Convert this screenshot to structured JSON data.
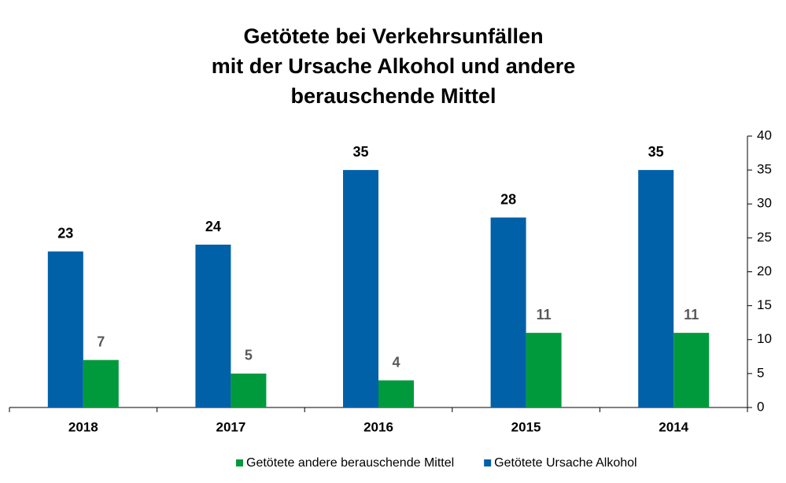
{
  "chart_data": {
    "type": "bar",
    "title": [
      "Getötete bei Verkehrsunfällen",
      "mit der Ursache Alkohol und andere",
      "berauschende Mittel"
    ],
    "categories": [
      "2018",
      "2017",
      "2016",
      "2015",
      "2014"
    ],
    "series": [
      {
        "name": "Getötete Ursache Alkohol",
        "color": "#0060a8",
        "values": [
          23,
          24,
          35,
          28,
          35
        ]
      },
      {
        "name": "Getötete andere berauschende Mittel",
        "color": "#009a3d",
        "values": [
          7,
          5,
          4,
          11,
          11
        ]
      }
    ],
    "ylim": [
      0,
      40
    ],
    "yticks": [
      0,
      5,
      10,
      15,
      20,
      25,
      30,
      35,
      40
    ],
    "grid": false,
    "y_axis_side": "right"
  }
}
